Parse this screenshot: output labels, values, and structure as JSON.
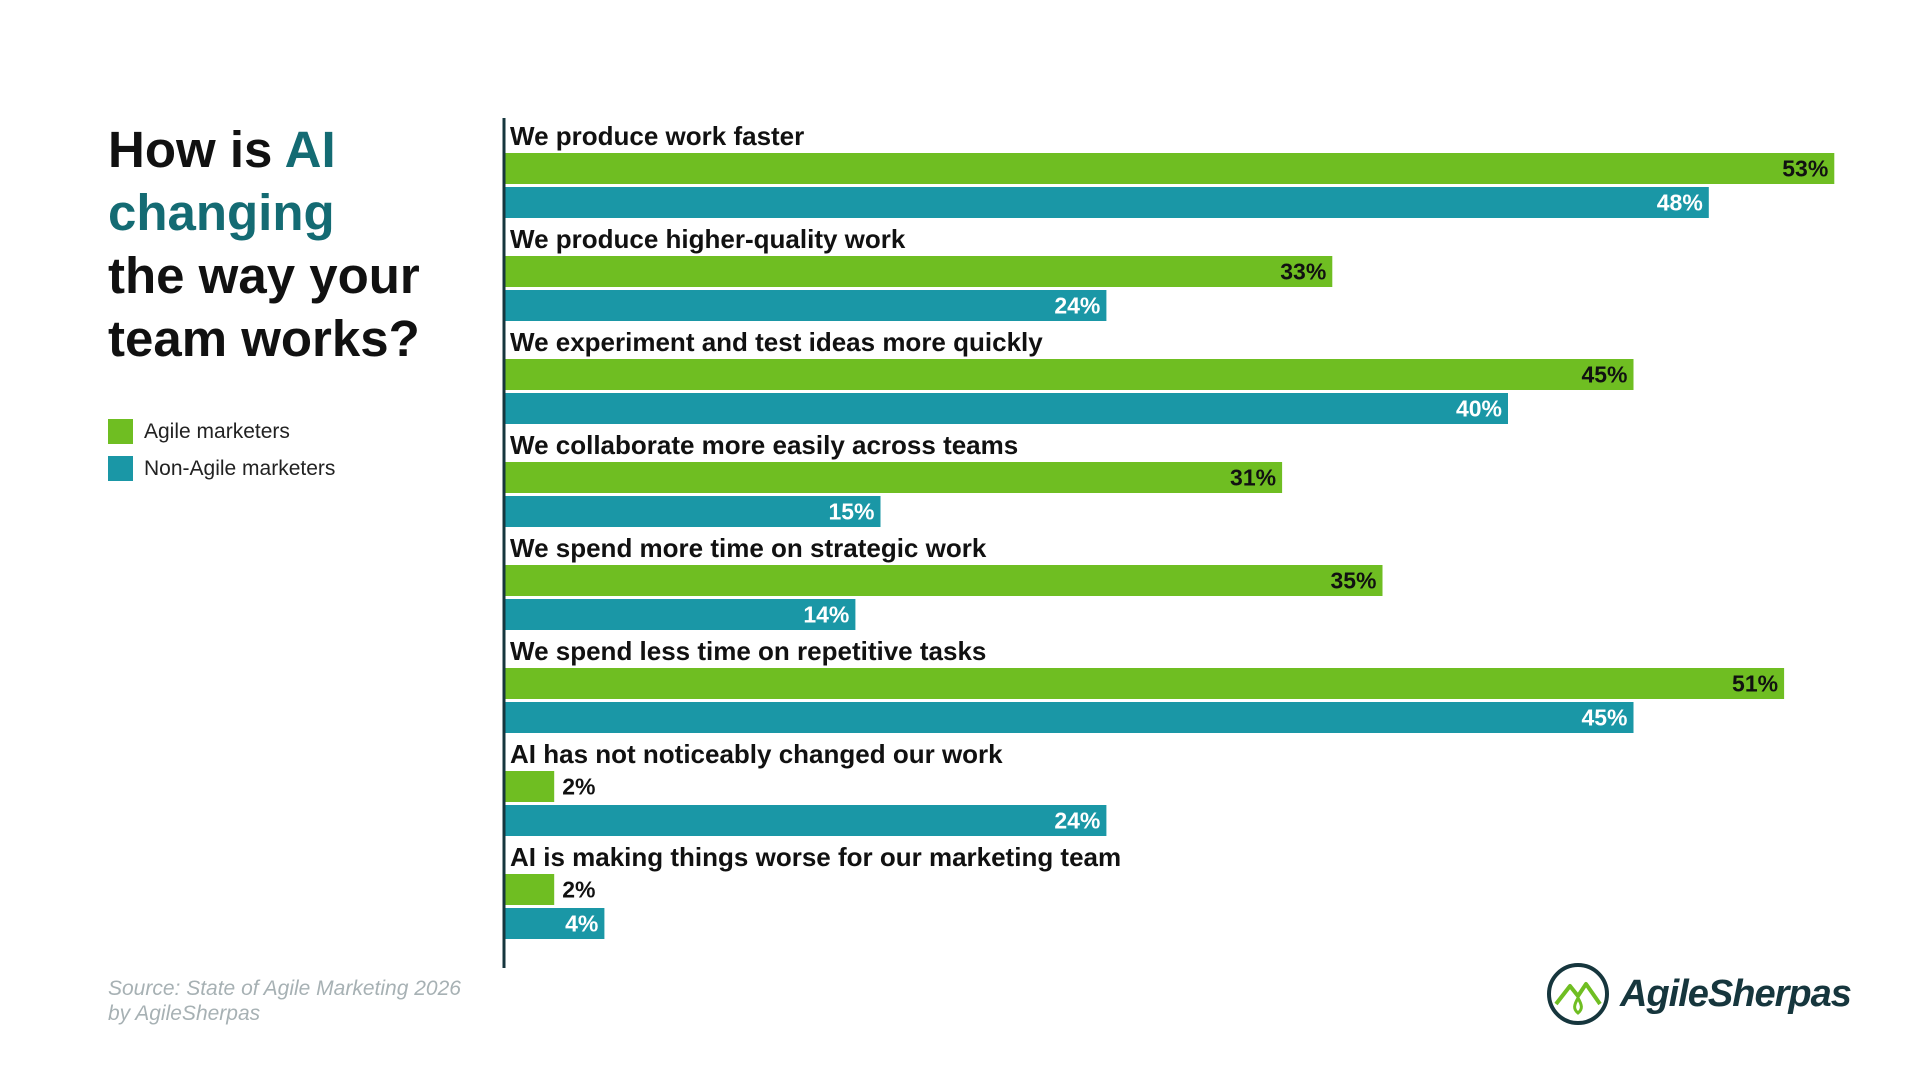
{
  "title": {
    "part1": "How is ",
    "accent": "AI",
    "part2": "changing",
    "part3": "the way your",
    "part4": "team works?"
  },
  "legend": [
    {
      "label": "Agile marketers",
      "color": "#6fbe22"
    },
    {
      "label": "Non-Agile marketers",
      "color": "#1a97a6"
    }
  ],
  "source": {
    "line1": "Source: State of Agile Marketing 2026",
    "line2": "by AgileSherpas"
  },
  "brand": {
    "name": "AgileSherpas",
    "color": "#16363d",
    "accent": "#6fbe22"
  },
  "colors": {
    "axis": "#16363d",
    "agile": "#6fbe22",
    "non_agile": "#1a97a6",
    "accent_text": "#146b73"
  },
  "chart_data": {
    "type": "bar",
    "orientation": "horizontal",
    "title": "How is AI changing the way your team works?",
    "unit": "%",
    "xlim": [
      0,
      53
    ],
    "categories": [
      "We produce work faster",
      "We produce higher-quality work",
      "We experiment and test ideas more quickly",
      "We collaborate more easily across teams",
      "We spend more time on strategic work",
      "We spend less time on repetitive tasks",
      "AI has not noticeably changed our work",
      "AI is making things worse for our marketing team"
    ],
    "series": [
      {
        "name": "Agile marketers",
        "values": [
          53,
          33,
          45,
          31,
          35,
          51,
          2,
          2
        ]
      },
      {
        "name": "Non-Agile marketers",
        "values": [
          48,
          24,
          40,
          15,
          14,
          45,
          24,
          4
        ]
      }
    ]
  }
}
